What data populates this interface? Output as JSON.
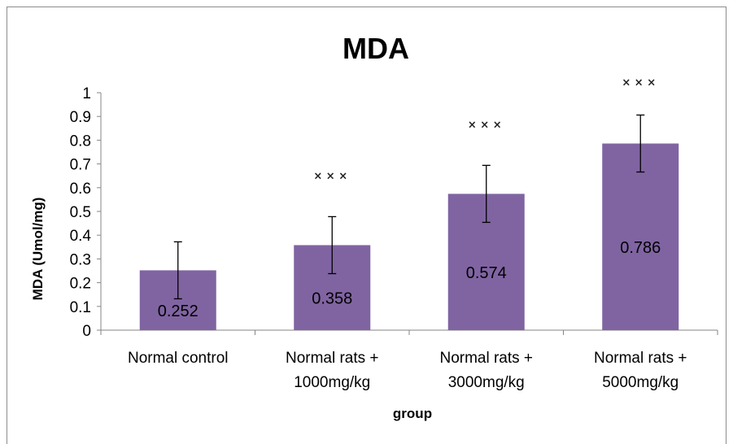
{
  "chart_data": {
    "type": "bar",
    "title": "MDA",
    "xlabel": "group",
    "ylabel": "MDA (Umol/mg)",
    "ylim": [
      0,
      1
    ],
    "yticks": [
      "0",
      "0.1",
      "0.2",
      "0.3",
      "0.4",
      "0.5",
      "0.6",
      "0.7",
      "0.8",
      "0.9",
      "1"
    ],
    "categories": [
      [
        "Normal control"
      ],
      [
        "Normal rats +",
        "1000mg/kg"
      ],
      [
        "Normal rats +",
        "3000mg/kg"
      ],
      [
        "Normal rats +",
        "5000mg/kg"
      ]
    ],
    "values": [
      0.252,
      0.358,
      0.574,
      0.786
    ],
    "data_labels": [
      "0.252",
      "0.358",
      "0.574",
      "0.786"
    ],
    "error_bars": [
      0.12,
      0.12,
      0.12,
      0.12
    ],
    "significance": [
      "",
      "× × ×",
      "× × ×",
      "× × ×"
    ],
    "grid": false,
    "legend": "none",
    "bar_color": "#8064a2"
  }
}
